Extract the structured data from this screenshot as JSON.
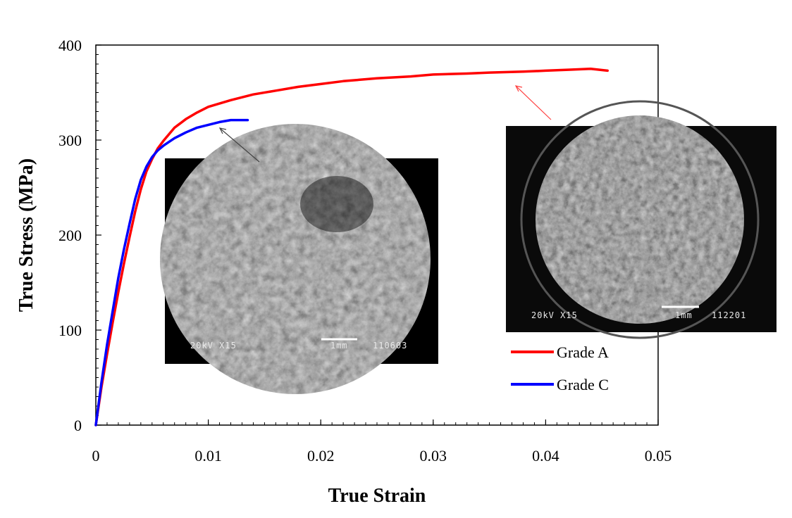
{
  "chart_data": {
    "type": "line",
    "title": "",
    "xlabel": "True Strain",
    "ylabel": "True Stress (MPa)",
    "xlim": [
      0,
      0.05
    ],
    "ylim": [
      0,
      400
    ],
    "x_ticks": [
      0,
      0.01,
      0.02,
      0.03,
      0.04,
      0.05
    ],
    "x_tick_labels": [
      "0",
      "0.01",
      "0.02",
      "0.03",
      "0.04",
      "0.05"
    ],
    "y_ticks": [
      0,
      100,
      200,
      300,
      400
    ],
    "y_tick_labels": [
      "0",
      "100",
      "200",
      "300",
      "400"
    ],
    "legend_position": "lower-right",
    "series": [
      {
        "name": "Grade A",
        "color": "#ff0000",
        "x": [
          0,
          0.0005,
          0.001,
          0.0015,
          0.002,
          0.0025,
          0.003,
          0.0035,
          0.004,
          0.0045,
          0.005,
          0.0055,
          0.006,
          0.0065,
          0.007,
          0.008,
          0.009,
          0.01,
          0.012,
          0.014,
          0.016,
          0.018,
          0.02,
          0.022,
          0.025,
          0.028,
          0.03,
          0.033,
          0.035,
          0.038,
          0.04,
          0.042,
          0.044,
          0.0455
        ],
        "values": [
          0,
          40,
          75,
          108,
          140,
          170,
          198,
          225,
          248,
          267,
          280,
          291,
          299,
          306,
          313,
          322,
          329,
          335,
          342,
          348,
          352,
          356,
          359,
          362,
          365,
          367,
          369,
          370,
          371,
          372,
          373,
          374,
          375,
          373
        ]
      },
      {
        "name": "Grade C",
        "color": "#0000ff",
        "x": [
          0,
          0.0005,
          0.001,
          0.0015,
          0.002,
          0.0025,
          0.003,
          0.0035,
          0.004,
          0.0045,
          0.005,
          0.0055,
          0.006,
          0.0065,
          0.007,
          0.008,
          0.009,
          0.01,
          0.011,
          0.012,
          0.0125,
          0.0135
        ],
        "values": [
          0,
          45,
          85,
          120,
          155,
          185,
          212,
          238,
          258,
          272,
          282,
          289,
          294,
          298,
          302,
          308,
          313,
          316,
          319,
          321,
          321,
          321
        ]
      }
    ],
    "annotations": [
      {
        "name": "inset-grade-c",
        "target_series": "Grade C",
        "target_x": 0.011,
        "target_y": 315,
        "scale_bar_label": "1mm",
        "info_left": "20kV  X15",
        "info_right": "110603"
      },
      {
        "name": "inset-grade-a",
        "target_series": "Grade A",
        "target_x": 0.0375,
        "target_y": 360,
        "scale_bar_label": "1mm",
        "info_left": "20kV  X15",
        "info_right": "112201"
      }
    ]
  }
}
